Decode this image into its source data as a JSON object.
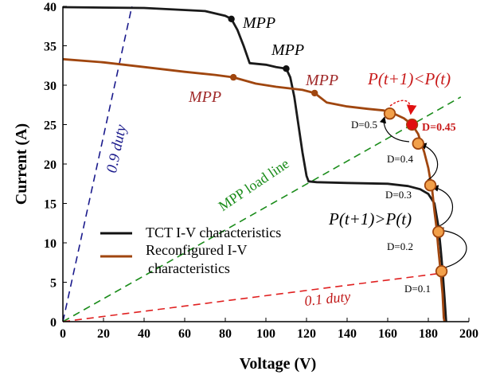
{
  "chart_data": {
    "type": "line",
    "xlabel": "Voltage (V)",
    "ylabel": "Current (A)",
    "xlim": [
      0,
      200
    ],
    "ylim": [
      0,
      40
    ],
    "x_ticks": [
      "0",
      "20",
      "40",
      "60",
      "80",
      "100",
      "120",
      "140",
      "160",
      "180",
      "200"
    ],
    "y_ticks": [
      "0",
      "5",
      "10",
      "15",
      "20",
      "25",
      "30",
      "35",
      "40"
    ],
    "grid": false,
    "legend_placement": "lower-left",
    "series": [
      {
        "name": "TCT I-V characteristics",
        "color": "#1a1a1a",
        "points": [
          [
            0,
            39.9
          ],
          [
            40,
            39.8
          ],
          [
            70,
            39.4
          ],
          [
            80,
            38.8
          ],
          [
            83,
            38.4
          ],
          [
            86,
            37.0
          ],
          [
            89,
            35.0
          ],
          [
            92,
            32.8
          ],
          [
            100,
            32.6
          ],
          [
            105,
            32.3
          ],
          [
            110,
            32.1
          ],
          [
            112,
            31.0
          ],
          [
            114,
            28.5
          ],
          [
            116,
            25.0
          ],
          [
            118,
            21.5
          ],
          [
            120,
            18.5
          ],
          [
            121,
            17.8
          ],
          [
            125,
            17.7
          ],
          [
            140,
            17.6
          ],
          [
            160,
            17.5
          ],
          [
            170,
            17.2
          ],
          [
            176,
            16.8
          ],
          [
            180,
            16.2
          ],
          [
            183,
            15.0
          ],
          [
            185,
            12.0
          ],
          [
            186,
            9.5
          ],
          [
            187,
            6.5
          ],
          [
            188,
            3.0
          ],
          [
            188.8,
            0
          ]
        ]
      },
      {
        "name": "Reconfigured I-V characteristics",
        "color": "#a0460f",
        "points": [
          [
            0,
            33.3
          ],
          [
            20,
            32.9
          ],
          [
            40,
            32.3
          ],
          [
            60,
            31.7
          ],
          [
            75,
            31.3
          ],
          [
            84,
            31.0
          ],
          [
            95,
            30.2
          ],
          [
            105,
            29.8
          ],
          [
            118,
            29.4
          ],
          [
            124,
            29.0
          ],
          [
            130,
            27.8
          ],
          [
            140,
            27.3
          ],
          [
            150,
            27.0
          ],
          [
            158,
            26.8
          ],
          [
            163,
            26.4
          ],
          [
            168,
            25.8
          ],
          [
            172,
            25.0
          ],
          [
            175,
            23.8
          ],
          [
            178,
            21.5
          ],
          [
            180,
            19.5
          ],
          [
            182,
            16.5
          ],
          [
            183,
            14.0
          ],
          [
            184,
            12.0
          ],
          [
            185,
            9.0
          ],
          [
            186,
            6.5
          ],
          [
            187,
            3.5
          ],
          [
            187.6,
            0.5
          ],
          [
            188,
            0
          ]
        ]
      }
    ],
    "load_lines": [
      {
        "label": "0.9 duty",
        "color": "#1a1a8c",
        "x": [
          0,
          34
        ],
        "y": [
          0,
          40
        ]
      },
      {
        "label": "MPP load line",
        "color": "#1a8c1a",
        "x": [
          0,
          196
        ],
        "y": [
          0,
          28.5
        ]
      },
      {
        "label": "0.1 duty",
        "color": "#e02020",
        "x": [
          0,
          185
        ],
        "y": [
          0,
          6.1
        ]
      }
    ],
    "mpp_markers": [
      {
        "x": 83,
        "y": 38.4,
        "color": "#111111"
      },
      {
        "x": 110,
        "y": 32.1,
        "color": "#111111"
      },
      {
        "x": 84,
        "y": 31.0,
        "color": "#a0460f"
      },
      {
        "x": 124,
        "y": 29.0,
        "color": "#a0460f"
      }
    ],
    "duty_points": [
      {
        "label": "D=0.5",
        "x": 161,
        "y": 26.4
      },
      {
        "label": "D=0.4",
        "x": 175,
        "y": 22.6
      },
      {
        "label": "D=0.3",
        "x": 181,
        "y": 17.3
      },
      {
        "label": "D=0.2",
        "x": 185,
        "y": 11.4
      },
      {
        "label": "D=0.1",
        "x": 186.5,
        "y": 6.4
      }
    ],
    "optimum_point": {
      "label": "D=0.45",
      "x": 172,
      "y": 25.0
    },
    "annotations": {
      "mpp": "MPP",
      "p_decrease": "P(t+1)<P(t)",
      "p_increase": "P(t+1)>P(t)"
    }
  }
}
